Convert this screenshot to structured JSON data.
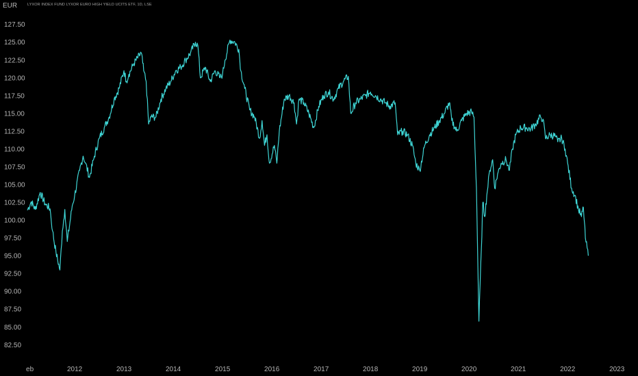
{
  "header": {
    "currency": "EUR",
    "title": "LYXOR INDEX FUND LYXOR EURO HIGH YIELD UCITS ETF, 1D, LSE"
  },
  "chart_data": {
    "type": "line",
    "title": "LYXOR INDEX FUND LYXOR EURO HIGH YIELD UCITS ETF, 1D, LSE",
    "ylabel": "EUR",
    "ylim": [
      80.8,
      129.2
    ],
    "xlim": [
      2011.04,
      2023.4
    ],
    "grid": false,
    "line_color": "#3fd6d6",
    "background": "#000000",
    "y_ticks": [
      127.5,
      125.0,
      122.5,
      120.0,
      117.5,
      115.0,
      112.5,
      110.0,
      107.5,
      105.0,
      102.5,
      100.0,
      97.5,
      95.0,
      92.5,
      90.0,
      87.5,
      85.0,
      82.5
    ],
    "y_tick_labels": [
      "127.50",
      "125.00",
      "122.50",
      "120.00",
      "117.50",
      "115.00",
      "112.50",
      "110.00",
      "107.50",
      "105.00",
      "102.50",
      "100.00",
      "97.50",
      "95.00",
      "92.50",
      "90.00",
      "87.50",
      "85.00",
      "82.50"
    ],
    "x_ticks": [
      {
        "label": "eb",
        "x": 2011.09
      },
      {
        "label": "2012",
        "x": 2012.0
      },
      {
        "label": "2013",
        "x": 2013.0
      },
      {
        "label": "2014",
        "x": 2014.0
      },
      {
        "label": "2015",
        "x": 2015.0
      },
      {
        "label": "2016",
        "x": 2016.0
      },
      {
        "label": "2017",
        "x": 2017.0
      },
      {
        "label": "2018",
        "x": 2018.0
      },
      {
        "label": "2019",
        "x": 2019.0
      },
      {
        "label": "2020",
        "x": 2020.0
      },
      {
        "label": "2021",
        "x": 2021.0
      },
      {
        "label": "2022",
        "x": 2022.0
      },
      {
        "label": "2023",
        "x": 2023.0
      }
    ],
    "series": [
      {
        "values": [
          [
            2011.04,
            101.4
          ],
          [
            2011.12,
            102.6
          ],
          [
            2011.2,
            101.5
          ],
          [
            2011.3,
            103.9
          ],
          [
            2011.4,
            102.3
          ],
          [
            2011.5,
            101.6
          ],
          [
            2011.55,
            98.5
          ],
          [
            2011.62,
            95.5
          ],
          [
            2011.7,
            93.0
          ],
          [
            2011.75,
            98.5
          ],
          [
            2011.8,
            101.5
          ],
          [
            2011.85,
            97.0
          ],
          [
            2011.95,
            102.0
          ],
          [
            2012.0,
            103.5
          ],
          [
            2012.1,
            107.0
          ],
          [
            2012.17,
            109.0
          ],
          [
            2012.22,
            108.0
          ],
          [
            2012.3,
            106.0
          ],
          [
            2012.4,
            109.0
          ],
          [
            2012.5,
            111.5
          ],
          [
            2012.6,
            113.0
          ],
          [
            2012.7,
            114.5
          ],
          [
            2012.8,
            117.0
          ],
          [
            2012.9,
            118.5
          ],
          [
            2013.0,
            121.0
          ],
          [
            2013.05,
            119.5
          ],
          [
            2013.1,
            120.5
          ],
          [
            2013.2,
            122.0
          ],
          [
            2013.35,
            123.5
          ],
          [
            2013.4,
            121.0
          ],
          [
            2013.45,
            119.5
          ],
          [
            2013.5,
            113.5
          ],
          [
            2013.55,
            114.5
          ],
          [
            2013.65,
            114.5
          ],
          [
            2013.75,
            117.0
          ],
          [
            2013.85,
            118.5
          ],
          [
            2013.95,
            119.5
          ],
          [
            2014.05,
            121.0
          ],
          [
            2014.15,
            121.5
          ],
          [
            2014.25,
            122.5
          ],
          [
            2014.35,
            123.5
          ],
          [
            2014.45,
            125.0
          ],
          [
            2014.5,
            124.5
          ],
          [
            2014.55,
            120.0
          ],
          [
            2014.65,
            121.5
          ],
          [
            2014.75,
            119.5
          ],
          [
            2014.85,
            121.0
          ],
          [
            2014.95,
            120.0
          ],
          [
            2015.0,
            120.5
          ],
          [
            2015.05,
            122.5
          ],
          [
            2015.15,
            125.3
          ],
          [
            2015.25,
            125.0
          ],
          [
            2015.33,
            124.0
          ],
          [
            2015.37,
            121.0
          ],
          [
            2015.45,
            118.5
          ],
          [
            2015.55,
            115.5
          ],
          [
            2015.65,
            114.5
          ],
          [
            2015.75,
            111.5
          ],
          [
            2015.8,
            114.0
          ],
          [
            2015.85,
            110.5
          ],
          [
            2015.9,
            112.0
          ],
          [
            2015.95,
            108.0
          ],
          [
            2016.05,
            110.5
          ],
          [
            2016.1,
            108.0
          ],
          [
            2016.15,
            112.5
          ],
          [
            2016.25,
            117.0
          ],
          [
            2016.35,
            117.5
          ],
          [
            2016.45,
            116.5
          ],
          [
            2016.5,
            113.5
          ],
          [
            2016.55,
            117.0
          ],
          [
            2016.65,
            116.5
          ],
          [
            2016.75,
            115.0
          ],
          [
            2016.85,
            113.0
          ],
          [
            2016.95,
            116.0
          ],
          [
            2017.05,
            117.5
          ],
          [
            2017.15,
            118.0
          ],
          [
            2017.25,
            117.0
          ],
          [
            2017.35,
            118.5
          ],
          [
            2017.45,
            119.5
          ],
          [
            2017.55,
            120.2
          ],
          [
            2017.6,
            115.0
          ],
          [
            2017.7,
            116.5
          ],
          [
            2017.8,
            117.0
          ],
          [
            2017.9,
            117.5
          ],
          [
            2018.0,
            118.0
          ],
          [
            2018.1,
            117.5
          ],
          [
            2018.2,
            117.0
          ],
          [
            2018.3,
            116.5
          ],
          [
            2018.4,
            116.0
          ],
          [
            2018.5,
            116.5
          ],
          [
            2018.55,
            112.0
          ],
          [
            2018.65,
            112.5
          ],
          [
            2018.75,
            112.0
          ],
          [
            2018.85,
            110.5
          ],
          [
            2018.92,
            108.0
          ],
          [
            2019.0,
            107.0
          ],
          [
            2019.1,
            110.5
          ],
          [
            2019.2,
            112.0
          ],
          [
            2019.3,
            113.0
          ],
          [
            2019.4,
            114.0
          ],
          [
            2019.5,
            115.0
          ],
          [
            2019.6,
            116.5
          ],
          [
            2019.65,
            114.0
          ],
          [
            2019.75,
            112.5
          ],
          [
            2019.85,
            114.0
          ],
          [
            2019.95,
            115.0
          ],
          [
            2020.05,
            115.2
          ],
          [
            2020.1,
            114.5
          ],
          [
            2020.15,
            104.5
          ],
          [
            2020.2,
            85.8
          ],
          [
            2020.25,
            96.0
          ],
          [
            2020.28,
            102.5
          ],
          [
            2020.32,
            100.5
          ],
          [
            2020.36,
            103.5
          ],
          [
            2020.42,
            107.0
          ],
          [
            2020.48,
            108.5
          ],
          [
            2020.52,
            104.5
          ],
          [
            2020.58,
            106.5
          ],
          [
            2020.65,
            108.0
          ],
          [
            2020.75,
            108.5
          ],
          [
            2020.82,
            107.0
          ],
          [
            2020.88,
            110.0
          ],
          [
            2020.95,
            112.0
          ],
          [
            2021.05,
            113.0
          ],
          [
            2021.15,
            113.0
          ],
          [
            2021.25,
            112.8
          ],
          [
            2021.35,
            113.5
          ],
          [
            2021.45,
            114.5
          ],
          [
            2021.5,
            114.2
          ],
          [
            2021.55,
            111.5
          ],
          [
            2021.65,
            112.0
          ],
          [
            2021.75,
            111.8
          ],
          [
            2021.8,
            111.0
          ],
          [
            2021.88,
            111.5
          ],
          [
            2021.95,
            110.0
          ],
          [
            2022.0,
            108.0
          ],
          [
            2022.08,
            104.5
          ],
          [
            2022.15,
            103.5
          ],
          [
            2022.22,
            101.5
          ],
          [
            2022.28,
            100.5
          ],
          [
            2022.32,
            101.8
          ],
          [
            2022.36,
            97.5
          ],
          [
            2022.42,
            95.0
          ]
        ]
      }
    ]
  }
}
